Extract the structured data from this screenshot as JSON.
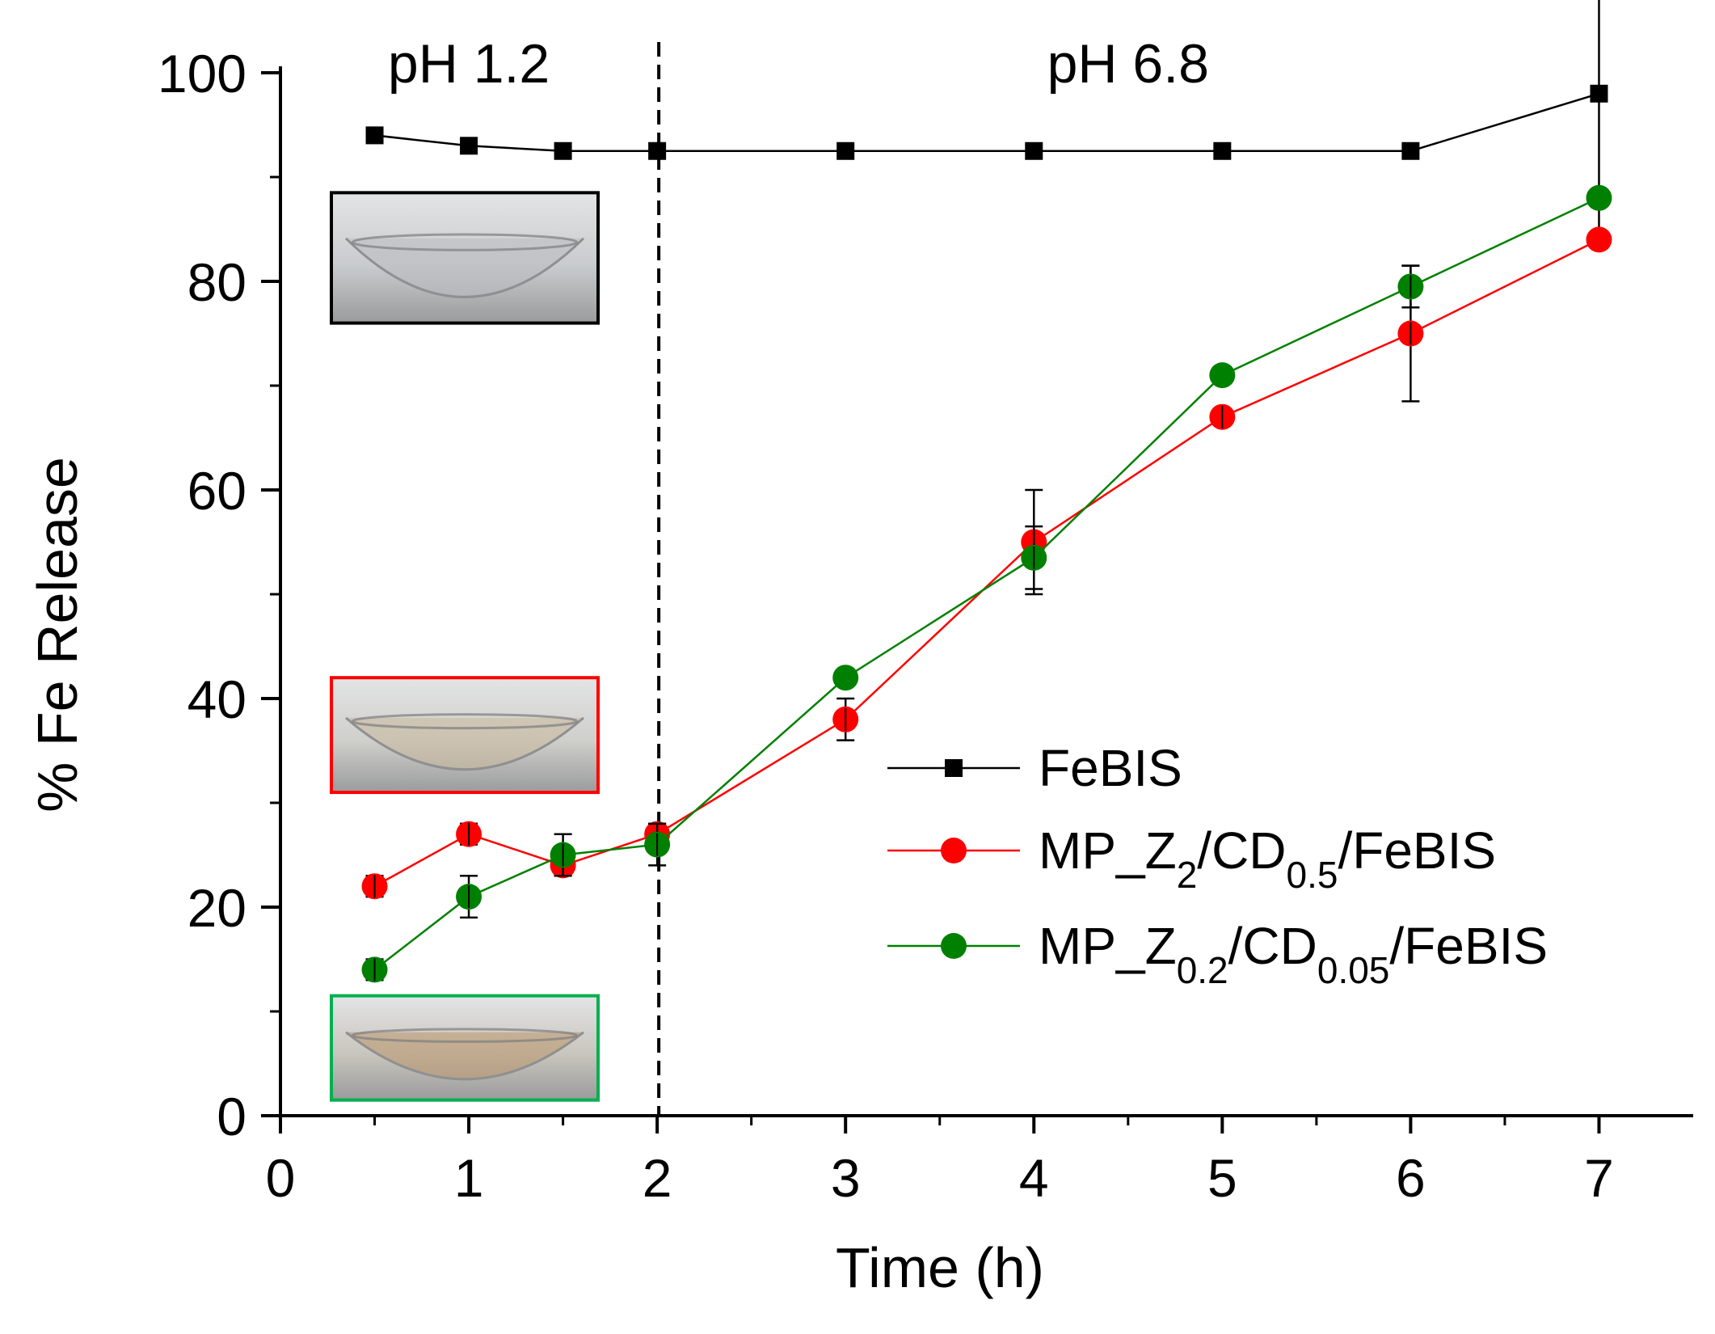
{
  "chart_data": {
    "type": "line",
    "title": "",
    "xlabel": "Time (h)",
    "ylabel": "% Fe Release",
    "xlim": [
      0,
      7.5
    ],
    "ylim": [
      0,
      100
    ],
    "xticks": [
      0,
      1,
      2,
      3,
      4,
      5,
      6,
      7
    ],
    "yticks": [
      0,
      20,
      40,
      60,
      80,
      100
    ],
    "xtick_labels": [
      "0",
      "1",
      "2",
      "3",
      "4",
      "5",
      "6",
      "7"
    ],
    "ytick_labels": [
      "0",
      "20",
      "40",
      "60",
      "80",
      "100"
    ],
    "divider_x": 2,
    "regions": [
      {
        "label": "pH 1.2",
        "x": 1.0
      },
      {
        "label": "pH 6.8",
        "x": 4.5
      }
    ],
    "legend_position": "center-right",
    "series": [
      {
        "name": "FeBIS",
        "color": "#000000",
        "marker": "square",
        "x": [
          0.5,
          1,
          1.5,
          2,
          3,
          4,
          5,
          6,
          7
        ],
        "y": [
          94,
          93,
          92.5,
          92.5,
          92.5,
          92.5,
          92.5,
          92.5,
          98
        ],
        "err": [
          0,
          0,
          0,
          0,
          0,
          0,
          0,
          0,
          13.5
        ],
        "legend": {
          "base": "FeBIS",
          "parts": []
        }
      },
      {
        "name": "MP_Z2/CD0.5/FeBIS",
        "color": "#ff0000",
        "marker": "circle",
        "x": [
          0.5,
          1,
          1.5,
          2,
          3,
          4,
          5,
          6,
          7
        ],
        "y": [
          22,
          27,
          24,
          27,
          38,
          55,
          67,
          75,
          84
        ],
        "err": [
          1,
          1,
          1,
          1,
          2,
          5,
          0.5,
          6.5,
          0
        ],
        "legend": {
          "base": "MP_Z",
          "parts": [
            {
              "sub": "2",
              "text": "/CD"
            },
            {
              "sub": "0.5",
              "text": "/FeBIS"
            }
          ]
        }
      },
      {
        "name": "MP_Z0.2/CD0.05/FeBIS",
        "color": "#008000",
        "marker": "circle",
        "x": [
          0.5,
          1,
          1.5,
          2,
          3,
          4,
          5,
          6,
          7
        ],
        "y": [
          14,
          21,
          25,
          26,
          42,
          53.5,
          71,
          79.5,
          88
        ],
        "err": [
          1,
          2,
          2,
          2,
          0,
          3,
          0,
          2,
          0
        ],
        "legend": {
          "base": "MP_Z",
          "parts": [
            {
              "sub": "0.2",
              "text": "/CD"
            },
            {
              "sub": "0.05",
              "text": "/FeBIS"
            }
          ]
        }
      }
    ],
    "insets": [
      {
        "name": "febis-sample-photo",
        "border": "#000000",
        "y_top": 88.5,
        "y_bottom": 76,
        "liquid": "#c9ccce",
        "tint": "#b9bcbf"
      },
      {
        "name": "mp-z2-sample-photo",
        "border": "#ff0000",
        "y_top": 42,
        "y_bottom": 31,
        "liquid": "#cfcfcb",
        "tint": "#c8b89a"
      },
      {
        "name": "mp-z02-sample-photo",
        "border": "#00b050",
        "y_top": 11.5,
        "y_bottom": 1.5,
        "liquid": "#c9c6be",
        "tint": "#b9956a"
      }
    ]
  }
}
